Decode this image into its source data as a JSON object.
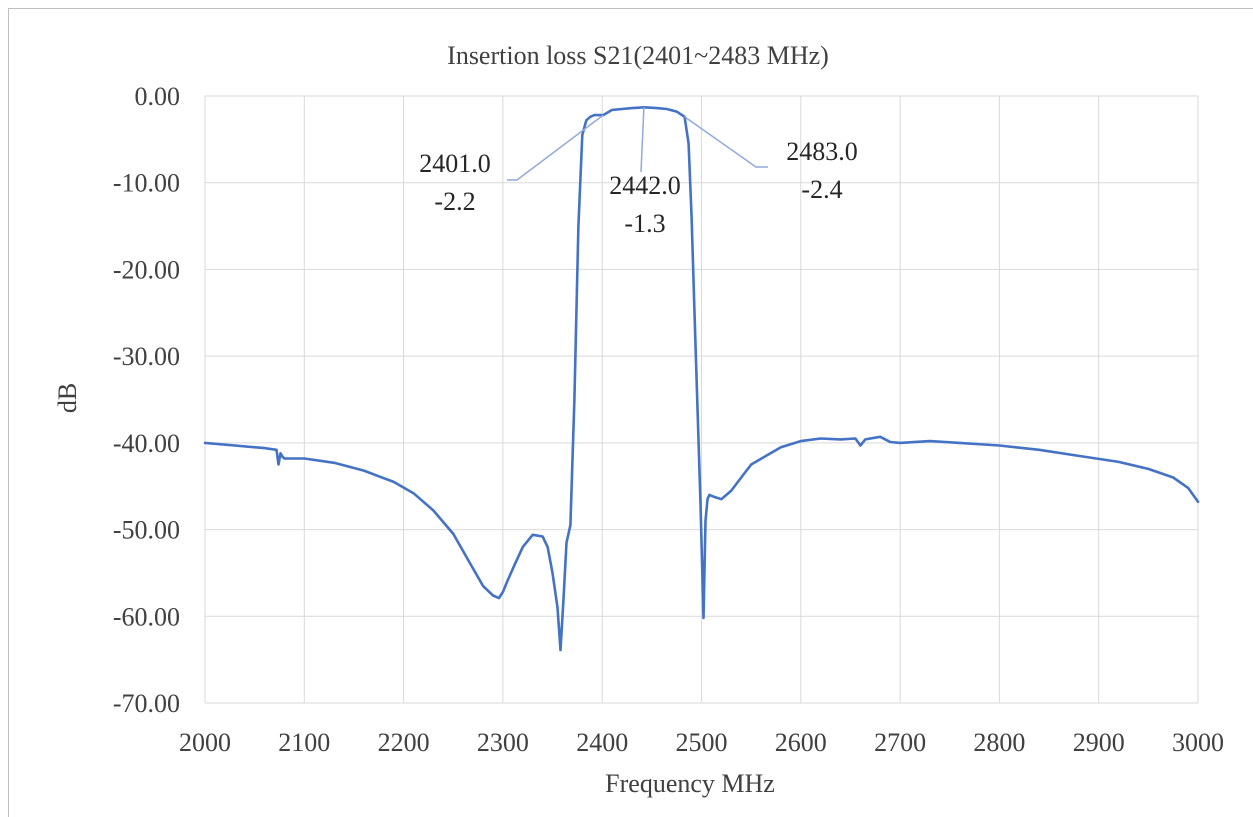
{
  "chart_data": {
    "type": "line",
    "title": "Insertion loss S21(2401~2483 MHz)",
    "xlabel": "Frequency MHz",
    "ylabel": "dB",
    "xlim": [
      2000,
      3000
    ],
    "ylim": [
      -70,
      0
    ],
    "x_ticks": [
      "2000",
      "2100",
      "2200",
      "2300",
      "2400",
      "2500",
      "2600",
      "2700",
      "2800",
      "2900",
      "3000"
    ],
    "y_ticks": [
      "0.00",
      "-10.00",
      "-20.00",
      "-30.00",
      "-40.00",
      "-50.00",
      "-60.00",
      "-70.00"
    ],
    "grid": true,
    "legend": "none",
    "series_color": "#4472C4",
    "leader_color": "#8FAADC",
    "grid_color": "#d9d9d9",
    "series": [
      {
        "x": [
          2000,
          2030,
          2060,
          2072,
          2074,
          2076,
          2078,
          2080,
          2100,
          2130,
          2160,
          2190,
          2210,
          2230,
          2250,
          2265,
          2280,
          2290,
          2296,
          2300,
          2305,
          2312,
          2320,
          2330,
          2340,
          2345,
          2350,
          2355,
          2358,
          2361,
          2364,
          2368,
          2372,
          2376,
          2380,
          2384,
          2388,
          2392,
          2396,
          2401,
          2410,
          2420,
          2430,
          2442,
          2455,
          2465,
          2475,
          2483,
          2487,
          2490,
          2493,
          2496,
          2499,
          2502,
          2504,
          2506,
          2508,
          2512,
          2520,
          2530,
          2540,
          2550,
          2565,
          2580,
          2600,
          2620,
          2640,
          2655,
          2660,
          2665,
          2680,
          2690,
          2700,
          2730,
          2760,
          2800,
          2840,
          2880,
          2920,
          2950,
          2975,
          2990,
          3000
        ],
        "y": [
          -40.0,
          -40.3,
          -40.6,
          -40.8,
          -42.5,
          -41.2,
          -41.6,
          -41.8,
          -41.8,
          -42.3,
          -43.2,
          -44.5,
          -45.8,
          -47.8,
          -50.5,
          -53.5,
          -56.5,
          -57.6,
          -57.9,
          -57.2,
          -55.8,
          -54.0,
          -52.0,
          -50.6,
          -50.8,
          -52.0,
          -55.0,
          -59.0,
          -63.9,
          -58.0,
          -51.5,
          -49.5,
          -35.0,
          -15.0,
          -4.5,
          -2.8,
          -2.4,
          -2.2,
          -2.2,
          -2.2,
          -1.6,
          -1.5,
          -1.4,
          -1.3,
          -1.4,
          -1.5,
          -1.8,
          -2.4,
          -5.5,
          -14.0,
          -25.0,
          -36.0,
          -47.0,
          -60.2,
          -49.0,
          -46.5,
          -46.0,
          -46.2,
          -46.5,
          -45.5,
          -44.0,
          -42.5,
          -41.5,
          -40.5,
          -39.8,
          -39.5,
          -39.6,
          -39.5,
          -40.3,
          -39.6,
          -39.3,
          -39.9,
          -40.0,
          -39.8,
          -40.0,
          -40.3,
          -40.8,
          -41.5,
          -42.2,
          -43.0,
          -44.0,
          -45.2,
          -46.8
        ]
      }
    ],
    "annotations": [
      {
        "freq": "2401.0",
        "value": "-2.2"
      },
      {
        "freq": "2442.0",
        "value": "-1.3"
      },
      {
        "freq": "2483.0",
        "value": "-2.4"
      }
    ]
  }
}
